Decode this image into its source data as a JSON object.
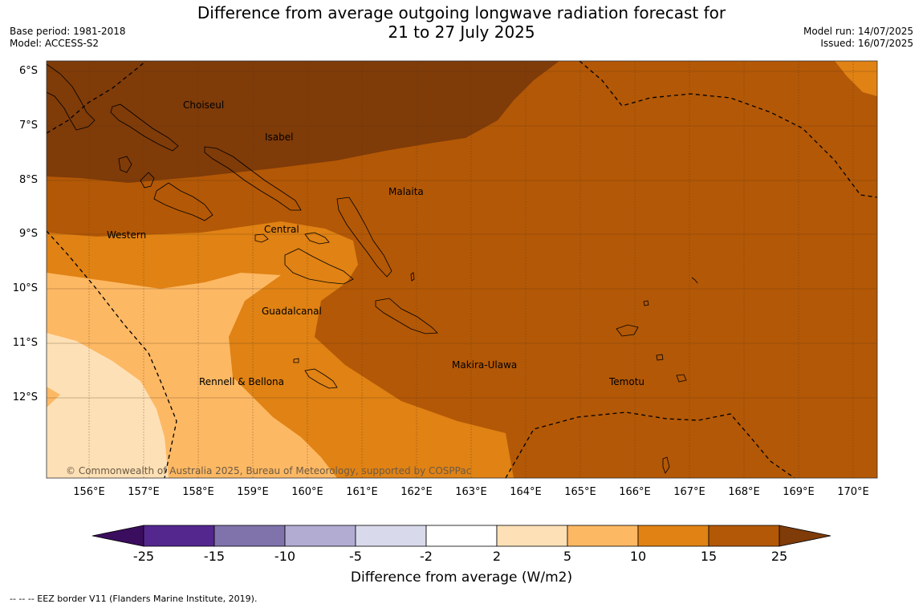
{
  "title": {
    "line1": "Difference from average outgoing longwave radiation forecast for",
    "line2": "21 to 27 July 2025"
  },
  "meta": {
    "base_period": "Base period: 1981-2018",
    "model": "Model: ACCESS-S2",
    "model_run": "Model run: 14/07/2025",
    "issued": "Issued: 16/07/2025"
  },
  "map": {
    "lat_labels": [
      "6°S",
      "7°S",
      "8°S",
      "9°S",
      "10°S",
      "11°S",
      "12°S"
    ],
    "lon_labels": [
      "156°E",
      "157°E",
      "158°E",
      "159°E",
      "160°E",
      "161°E",
      "162°E",
      "163°E",
      "164°E",
      "165°E",
      "166°E",
      "167°E",
      "168°E",
      "169°E",
      "170°E"
    ],
    "regions": [
      "Choiseul",
      "Isabel",
      "Malaita",
      "Western",
      "Central",
      "Guadalcanal",
      "Makira-Ulawa",
      "Rennell & Bellona",
      "Temotu"
    ],
    "copyright": "© Commonwealth of Australia 2025, Bureau of Meteorology, supported by COSPPac"
  },
  "colorbar": {
    "labels": [
      "-25",
      "-15",
      "-10",
      "-5",
      "-2",
      "2",
      "5",
      "10",
      "15",
      "25"
    ],
    "colors": [
      "#3b0d5e",
      "#54278f",
      "#8073ac",
      "#b2abd2",
      "#d8daeb",
      "#ffffff",
      "#fee0b6",
      "#fdb863",
      "#e08214",
      "#b35806",
      "#7f3b08"
    ],
    "title": "Difference from average (W/m2)"
  },
  "footnote": "--  --  -- EEZ border V11 (Flanders Marine Institute, 2019)."
}
